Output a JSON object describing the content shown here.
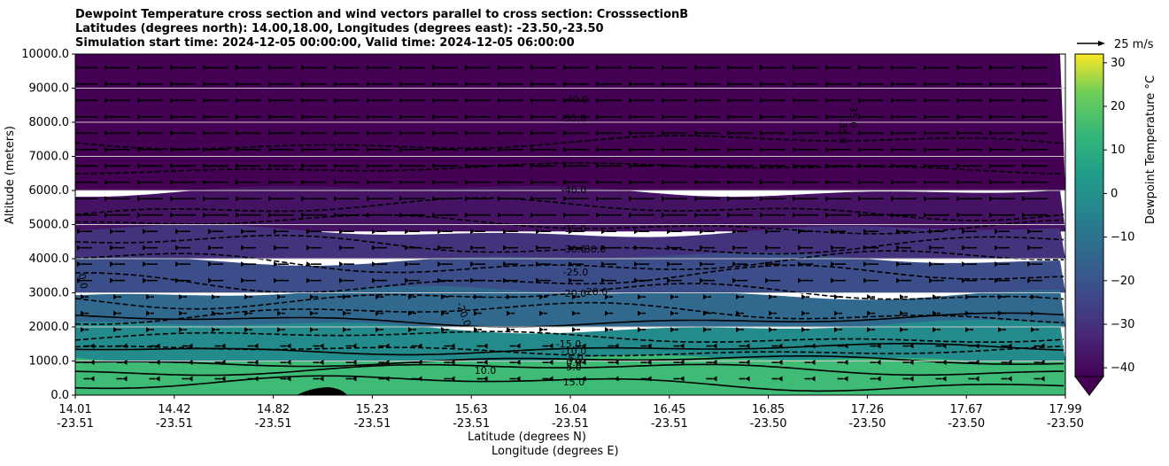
{
  "chart_data": {
    "type": "contour",
    "title_lines": [
      "Dewpoint Temperature cross section and wind vectors parallel to cross section: CrosssectionB",
      "Latitudes (degrees north): 14.00,18.00, Longitudes (degrees east): -23.50,-23.50",
      "Simulation start time: 2024-12-05 00:00:00, Valid time: 2024-12-05 06:00:00"
    ],
    "ylabel": "Altitude (meters)",
    "xlabel_lat": "Latitude (degrees N)",
    "xlabel_lon": "Longitude (degrees E)",
    "ylim": [
      0,
      10000
    ],
    "y_ticks": [
      "0.0",
      "1000.0",
      "2000.0",
      "3000.0",
      "4000.0",
      "5000.0",
      "6000.0",
      "7000.0",
      "8000.0",
      "9000.0",
      "10000.0"
    ],
    "x_ticks": [
      {
        "lat": "14.01",
        "lon": "-23.51"
      },
      {
        "lat": "14.42",
        "lon": "-23.51"
      },
      {
        "lat": "14.82",
        "lon": "-23.51"
      },
      {
        "lat": "15.23",
        "lon": "-23.51"
      },
      {
        "lat": "15.63",
        "lon": "-23.51"
      },
      {
        "lat": "16.04",
        "lon": "-23.51"
      },
      {
        "lat": "16.45",
        "lon": "-23.51"
      },
      {
        "lat": "16.85",
        "lon": "-23.50"
      },
      {
        "lat": "17.26",
        "lon": "-23.50"
      },
      {
        "lat": "17.67",
        "lon": "-23.50"
      },
      {
        "lat": "17.99",
        "lon": "-23.50"
      }
    ],
    "x_range": [
      14.01,
      17.99
    ],
    "grid": "horizontal",
    "colorbar": {
      "label": "Dewpoint Temperature °C",
      "ticks": [
        "30",
        "20",
        "10",
        "0",
        "−10",
        "−20",
        "−30",
        "−40"
      ],
      "range": [
        -42,
        32
      ],
      "extend": "min",
      "colormap": "viridis"
    },
    "quiver_key": "25 m/s",
    "contour_labels": [
      "-40.0",
      "-35.0",
      "-35.0",
      "-35.0",
      "-40.0",
      "-35.0",
      "-30.0",
      "-30.0",
      "-25.0",
      "-20.0",
      "-20.0",
      "-20.0",
      "-15.0",
      "-10.0",
      "-5.0",
      "0.0",
      "5.0",
      "10.0",
      "15.0",
      "0.0"
    ],
    "layers_temperature_c": [
      {
        "z_top": 10000,
        "z_bottom": 6000,
        "value": -42
      },
      {
        "z_top": 6000,
        "z_bottom": 4800,
        "value": -38
      },
      {
        "z_top": 4800,
        "z_bottom": 4000,
        "value": -30
      },
      {
        "z_top": 4000,
        "z_bottom": 3000,
        "value": -22
      },
      {
        "z_top": 3000,
        "z_bottom": 2000,
        "value": -14
      },
      {
        "z_top": 2000,
        "z_bottom": 1000,
        "value": -2
      },
      {
        "z_top": 1000,
        "z_bottom": 0,
        "value": 15
      }
    ]
  }
}
